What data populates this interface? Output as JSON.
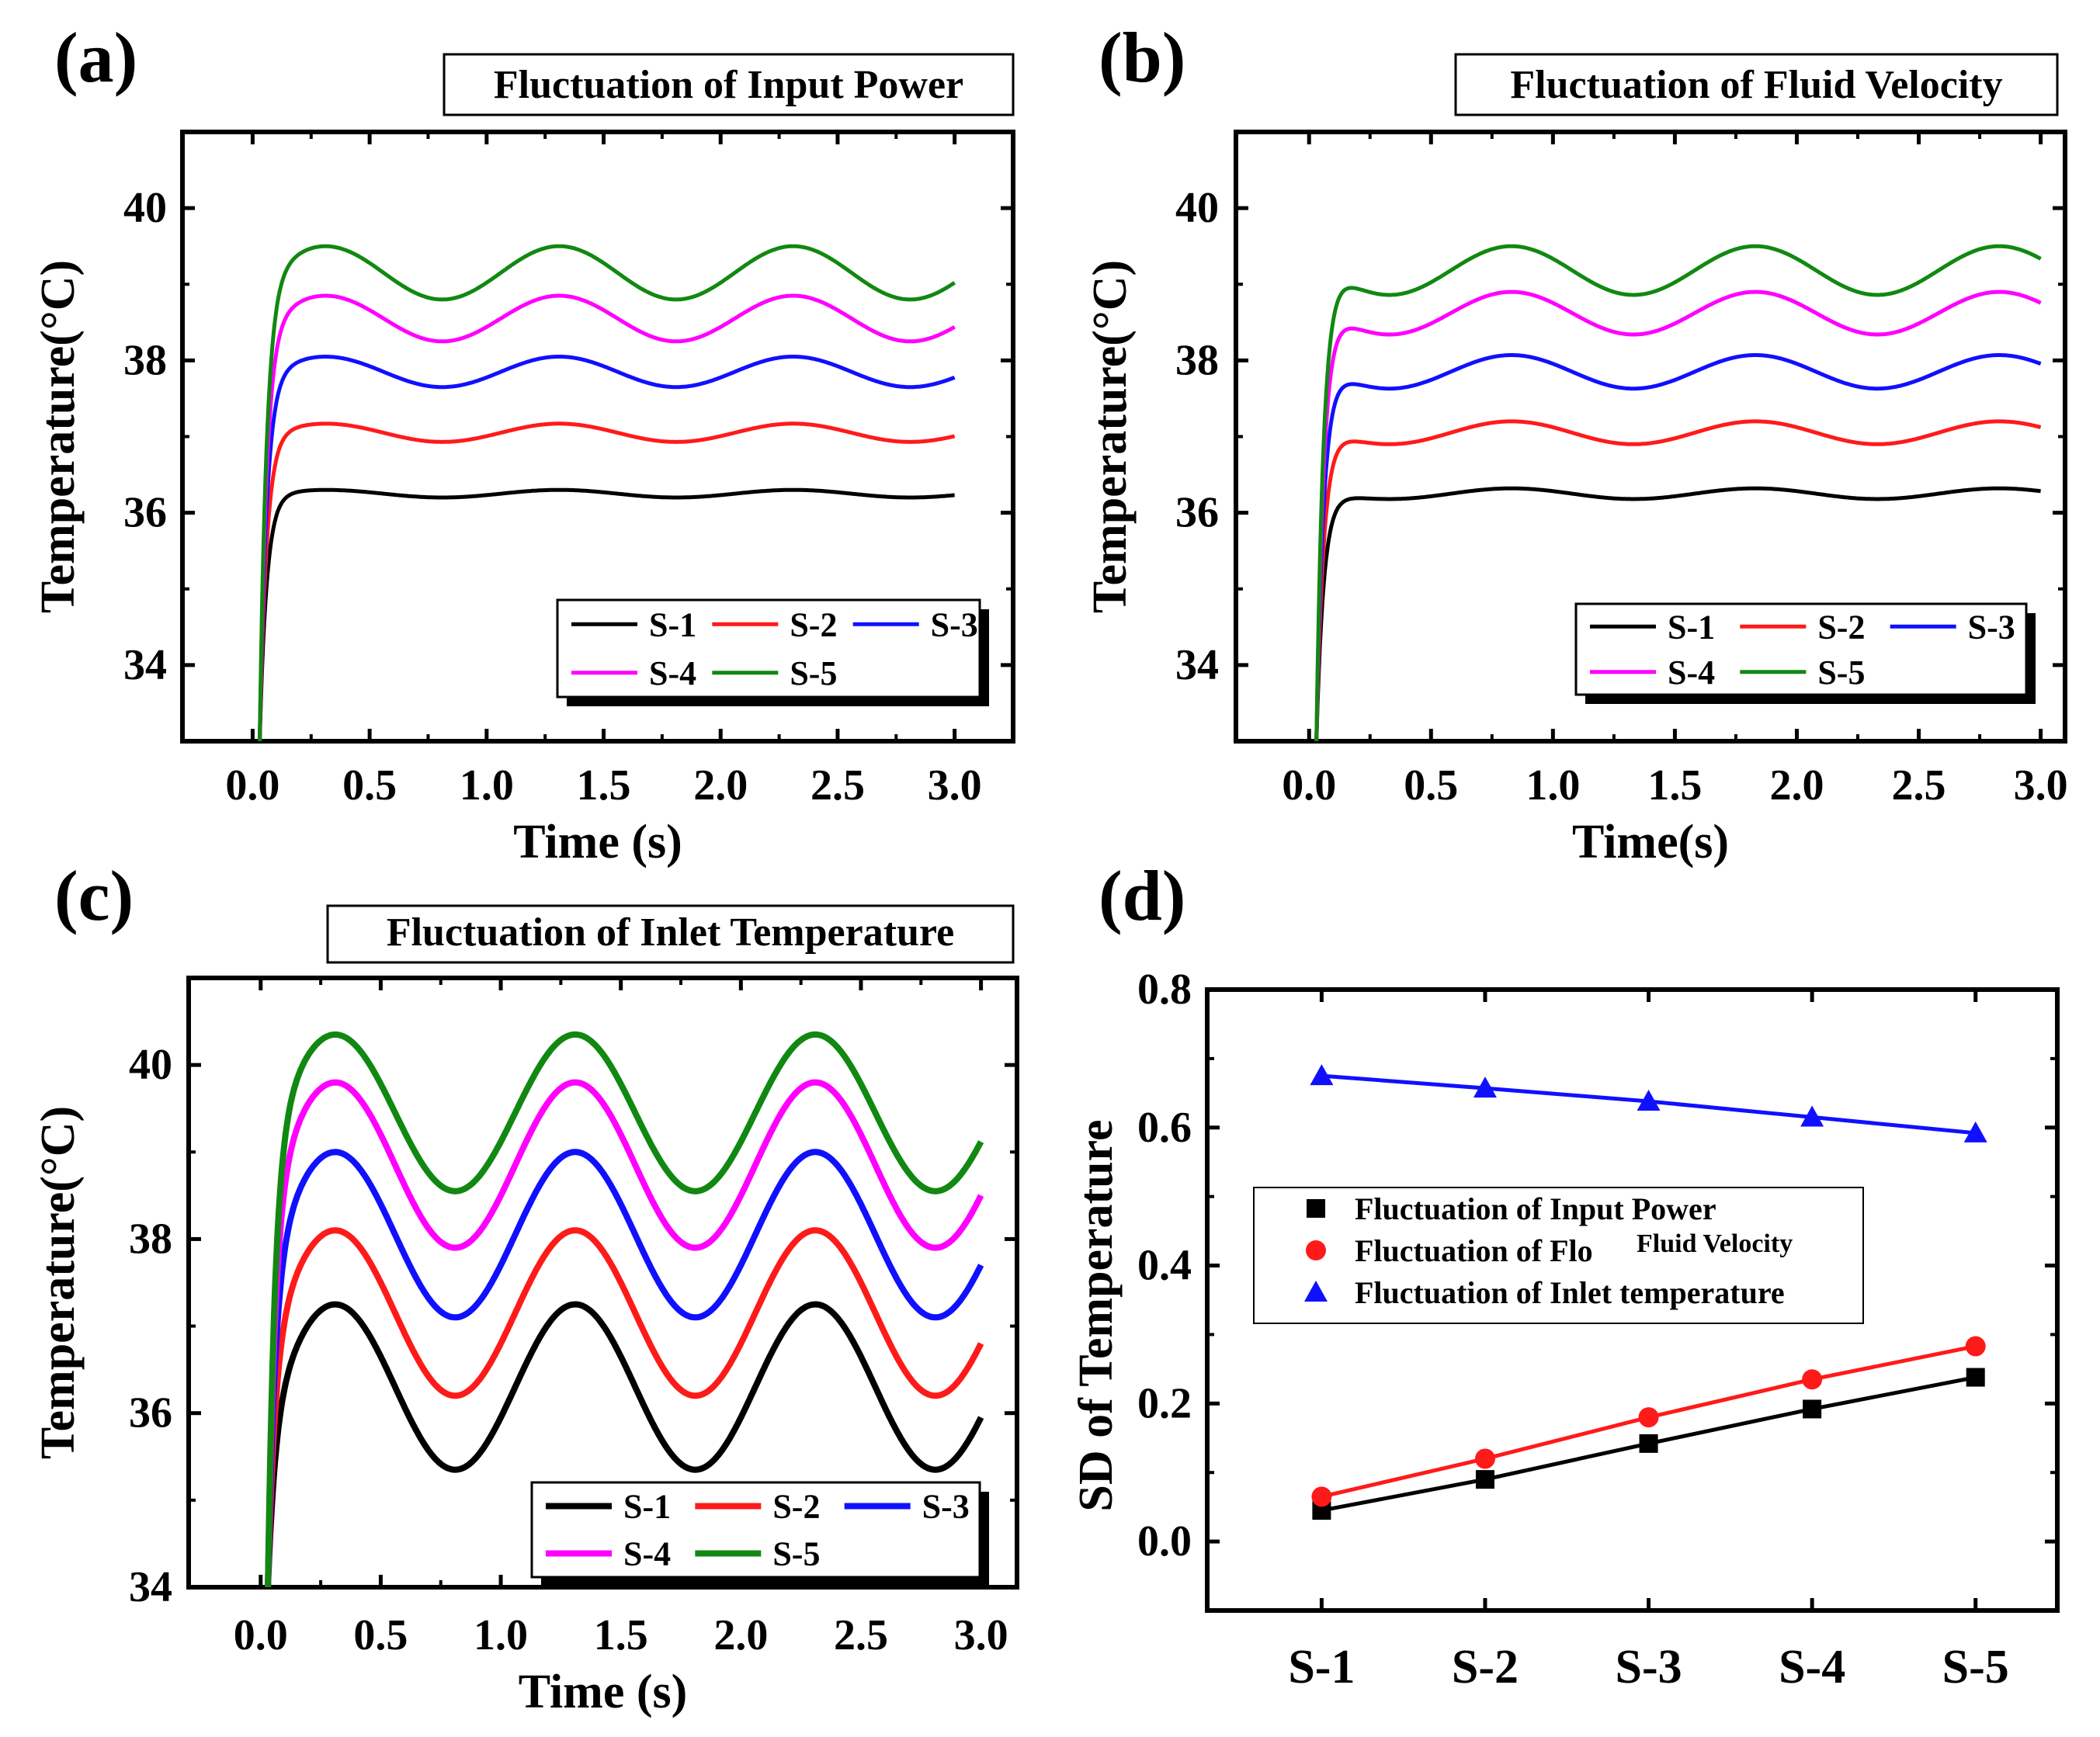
{
  "figure": {
    "description_free": true
  },
  "legend_names": [
    "S-1",
    "S-2",
    "S-3",
    "S-4",
    "S-5"
  ],
  "series_colors": {
    "S-1": "#000000",
    "S-2": "#ff1a1a",
    "S-3": "#1010ff",
    "S-4": "#ff00ff",
    "S-5": "#118811"
  },
  "chart_data": [
    {
      "id": "a",
      "panel_label": "(a)",
      "type": "line",
      "title": "Fluctuation of Input Power",
      "xlabel": "Time (s)",
      "ylabel": "Temperature(°C)",
      "xlim": [
        -0.3,
        3.25
      ],
      "ylim": [
        33,
        41
      ],
      "xticks": [
        "0.0",
        "0.5",
        "1.0",
        "1.5",
        "2.0",
        "2.5",
        "3.0"
      ],
      "yticks": [
        "34",
        "36",
        "38",
        "40"
      ],
      "model": {
        "t0": 0.03,
        "period": 1.0,
        "rise_tau": 0.03,
        "start_temp": 33.0
      },
      "series": [
        {
          "name": "S-1",
          "base": 36.25,
          "amp": 0.05,
          "phase": 0.03,
          "overshoot": 0.0
        },
        {
          "name": "S-2",
          "base": 37.05,
          "amp": 0.12,
          "phase": 0.03,
          "overshoot": 0.0
        },
        {
          "name": "S-3",
          "base": 37.85,
          "amp": 0.2,
          "phase": 0.03,
          "overshoot": 0.0
        },
        {
          "name": "S-4",
          "base": 38.55,
          "amp": 0.3,
          "phase": 0.03,
          "overshoot": 0.0
        },
        {
          "name": "S-5",
          "base": 39.15,
          "amp": 0.35,
          "phase": 0.03,
          "overshoot": 0.0
        }
      ]
    },
    {
      "id": "b",
      "panel_label": "(b)",
      "type": "line",
      "title": "Fluctuation of  Fluid Velocity",
      "xlabel": "Time(s)",
      "ylabel": "Temperature(°C)",
      "xlim": [
        -0.3,
        3.1
      ],
      "ylim": [
        33,
        41
      ],
      "xticks": [
        "0.0",
        "0.5",
        "1.0",
        "1.5",
        "2.0",
        "2.5",
        "3.0"
      ],
      "yticks": [
        "34",
        "36",
        "38",
        "40"
      ],
      "model": {
        "t0": 0.03,
        "period": 1.0,
        "rise_tau": 0.03,
        "start_temp": 33.0
      },
      "series": [
        {
          "name": "S-1",
          "base": 36.25,
          "amp": 0.07,
          "phase": 0.55,
          "overshoot": 0.0
        },
        {
          "name": "S-2",
          "base": 37.05,
          "amp": 0.15,
          "phase": 0.55,
          "overshoot": 0.0
        },
        {
          "name": "S-3",
          "base": 37.85,
          "amp": 0.22,
          "phase": 0.55,
          "overshoot": 0.0
        },
        {
          "name": "S-4",
          "base": 38.62,
          "amp": 0.28,
          "phase": 0.55,
          "overshoot": 0.0
        },
        {
          "name": "S-5",
          "base": 39.18,
          "amp": 0.32,
          "phase": 0.55,
          "overshoot": 0.0
        }
      ]
    },
    {
      "id": "c",
      "panel_label": "(c)",
      "type": "line",
      "title": "Fluctuation of Inlet Temperature",
      "xlabel": "Time (s)",
      "ylabel": "Temperature(°C)",
      "xlim": [
        -0.3,
        3.15
      ],
      "ylim": [
        34,
        41
      ],
      "xticks": [
        "0.0",
        "0.5",
        "1.0",
        "1.5",
        "2.0",
        "2.5",
        "3.0"
      ],
      "yticks": [
        "34",
        "36",
        "38",
        "40"
      ],
      "model": {
        "t0": 0.03,
        "period": 1.0,
        "rise_tau": 0.03,
        "start_temp": 34.0
      },
      "series": [
        {
          "name": "S-1",
          "base": 36.3,
          "amp": 0.95,
          "phase": 0.03,
          "overshoot": 0.0
        },
        {
          "name": "S-2",
          "base": 37.15,
          "amp": 0.95,
          "phase": 0.03,
          "overshoot": 0.0
        },
        {
          "name": "S-3",
          "base": 38.05,
          "amp": 0.95,
          "phase": 0.03,
          "overshoot": 0.0
        },
        {
          "name": "S-4",
          "base": 38.85,
          "amp": 0.95,
          "phase": 0.03,
          "overshoot": 0.0
        },
        {
          "name": "S-5",
          "base": 39.45,
          "amp": 0.9,
          "phase": 0.03,
          "overshoot": 0.0
        }
      ]
    },
    {
      "id": "d",
      "panel_label": "(d)",
      "type": "scatter",
      "title": "",
      "xlabel": "",
      "ylabel": "SD of Temperature",
      "categories": [
        "S-1",
        "S-2",
        "S-3",
        "S-4",
        "S-5"
      ],
      "xlim": [
        0.3,
        5.5
      ],
      "ylim": [
        -0.1,
        0.8
      ],
      "yticks": [
        "0.0",
        "0.2",
        "0.4",
        "0.6",
        "0.8"
      ],
      "legend": [
        "Fluctuation of Input Power",
        "Fluctuation of Flo",
        "Fluid Velocity",
        "Fluctuation of Inlet temperature"
      ],
      "series": [
        {
          "name": "Fluctuation of Input Power",
          "marker": "square",
          "color": "#000000",
          "line_color": "#000000",
          "values": [
            0.045,
            0.09,
            0.142,
            0.192,
            0.238
          ]
        },
        {
          "name": "Fluctuation of Fluid Velocity",
          "marker": "circle",
          "color": "#ff1a1a",
          "line_color": "#ff1a1a",
          "values": [
            0.065,
            0.12,
            0.18,
            0.235,
            0.283
          ]
        },
        {
          "name": "Fluctuation of Inlet temperature",
          "marker": "triangle",
          "color": "#1010ff",
          "line_color": "#1010ff",
          "values": [
            0.675,
            0.657,
            0.638,
            0.615,
            0.592
          ]
        }
      ]
    }
  ]
}
